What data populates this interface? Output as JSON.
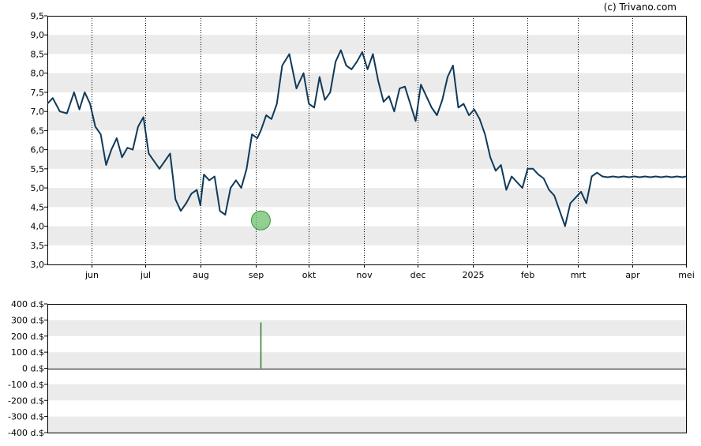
{
  "copyright": "(c) Trivano.com",
  "colors": {
    "price_line": "#0f3a5a",
    "band": "#ebebeb",
    "marker_fill": "#6dbf6d",
    "marker_stroke": "#3c963c",
    "volume_bar": "#2a7a2a"
  },
  "chart_data": [
    {
      "type": "line",
      "title": "",
      "x_tick_labels": [
        "jun",
        "jul",
        "aug",
        "sep",
        "okt",
        "nov",
        "dec",
        "2025",
        "feb",
        "mrt",
        "apr",
        "mei"
      ],
      "y_tick_labels": [
        "3,0",
        "3,5",
        "4,0",
        "4,5",
        "5,0",
        "5,5",
        "6,0",
        "6,5",
        "7,0",
        "7,5",
        "8,0",
        "8,5",
        "9,0",
        "9,5"
      ],
      "ylim": [
        3.0,
        9.5
      ],
      "grid": "alternating horizontal bands, dotted vertical month lines",
      "x_range": [
        "2024-05-07",
        "2025-05-01"
      ],
      "series": [
        {
          "x": [
            "2024-05-07",
            "2024-05-10",
            "2024-05-14",
            "2024-05-18",
            "2024-05-22",
            "2024-05-25",
            "2024-05-28",
            "2024-05-31",
            "2024-06-03",
            "2024-06-06",
            "2024-06-09",
            "2024-06-12",
            "2024-06-15",
            "2024-06-18",
            "2024-06-21",
            "2024-06-24",
            "2024-06-27",
            "2024-06-30",
            "2024-07-03",
            "2024-07-06",
            "2024-07-09",
            "2024-07-12",
            "2024-07-15",
            "2024-07-18",
            "2024-07-21",
            "2024-07-24",
            "2024-07-27",
            "2024-07-30",
            "2024-08-01",
            "2024-08-03",
            "2024-08-06",
            "2024-08-09",
            "2024-08-12",
            "2024-08-15",
            "2024-08-18",
            "2024-08-21",
            "2024-08-24",
            "2024-08-27",
            "2024-08-30",
            "2024-09-02",
            "2024-09-04",
            "2024-09-07",
            "2024-09-10",
            "2024-09-13",
            "2024-09-16",
            "2024-09-20",
            "2024-09-24",
            "2024-09-28",
            "2024-10-01",
            "2024-10-04",
            "2024-10-07",
            "2024-10-10",
            "2024-10-13",
            "2024-10-16",
            "2024-10-19",
            "2024-10-22",
            "2024-10-25",
            "2024-10-28",
            "2024-10-31",
            "2024-11-03",
            "2024-11-06",
            "2024-11-09",
            "2024-11-12",
            "2024-11-15",
            "2024-11-18",
            "2024-11-21",
            "2024-11-24",
            "2024-11-27",
            "2024-11-30",
            "2024-12-03",
            "2024-12-06",
            "2024-12-09",
            "2024-12-12",
            "2024-12-15",
            "2024-12-18",
            "2024-12-21",
            "2024-12-24",
            "2024-12-27",
            "2024-12-30",
            "2025-01-02",
            "2025-01-05",
            "2025-01-08",
            "2025-01-11",
            "2025-01-14",
            "2025-01-17",
            "2025-01-20",
            "2025-01-23",
            "2025-01-26",
            "2025-01-29",
            "2025-02-01",
            "2025-02-04",
            "2025-02-07",
            "2025-02-10",
            "2025-02-13",
            "2025-02-16",
            "2025-02-19",
            "2025-02-22",
            "2025-02-25",
            "2025-02-28",
            "2025-03-03",
            "2025-03-06",
            "2025-03-09",
            "2025-03-12",
            "2025-03-15",
            "2025-03-18",
            "2025-03-21",
            "2025-03-24",
            "2025-03-27",
            "2025-03-30",
            "2025-04-02",
            "2025-04-05",
            "2025-04-08",
            "2025-04-11",
            "2025-04-14",
            "2025-04-17",
            "2025-04-20",
            "2025-04-23",
            "2025-04-26",
            "2025-04-29",
            "2025-05-01"
          ],
          "y": [
            7.2,
            7.35,
            7.0,
            6.95,
            7.5,
            7.05,
            7.5,
            7.2,
            6.6,
            6.4,
            5.6,
            6.0,
            6.3,
            5.8,
            6.05,
            6.0,
            6.6,
            6.85,
            5.9,
            5.7,
            5.5,
            5.7,
            5.9,
            4.7,
            4.4,
            4.6,
            4.85,
            4.95,
            4.55,
            5.35,
            5.2,
            5.3,
            4.4,
            4.3,
            5.0,
            5.2,
            5.0,
            5.5,
            6.4,
            6.3,
            6.5,
            6.9,
            6.8,
            7.2,
            8.2,
            8.5,
            7.6,
            8.0,
            7.2,
            7.1,
            7.9,
            7.3,
            7.5,
            8.3,
            8.6,
            8.2,
            8.1,
            8.3,
            8.55,
            8.1,
            8.5,
            7.8,
            7.25,
            7.4,
            7.0,
            7.6,
            7.65,
            7.2,
            6.75,
            7.7,
            7.4,
            7.1,
            6.9,
            7.3,
            7.9,
            8.2,
            7.1,
            7.2,
            6.9,
            7.05,
            6.8,
            6.4,
            5.8,
            5.45,
            5.6,
            4.95,
            5.3,
            5.15,
            5.0,
            5.5,
            5.5,
            5.35,
            5.25,
            4.95,
            4.8,
            4.4,
            4.0,
            4.6,
            4.75,
            4.9,
            4.6,
            5.3,
            5.4,
            5.3,
            5.28,
            5.3,
            5.28,
            5.3,
            5.28,
            5.3,
            5.28,
            5.3,
            5.28,
            5.3,
            5.28,
            5.3,
            5.28,
            5.3,
            5.28,
            5.3
          ]
        }
      ],
      "marker": {
        "x": "2024-09-04",
        "y": 4.15
      }
    },
    {
      "type": "bar",
      "title": "",
      "y_tick_labels": [
        "400 d.$",
        "300 d.$",
        "200 d.$",
        "100 d.$",
        "0 d.$",
        "-100 d.$",
        "-200 d.$",
        "-300 d.$",
        "-400 d.$"
      ],
      "ylim": [
        -400,
        400
      ],
      "bars": [
        {
          "x": "2024-09-04",
          "value": 285
        }
      ]
    }
  ]
}
